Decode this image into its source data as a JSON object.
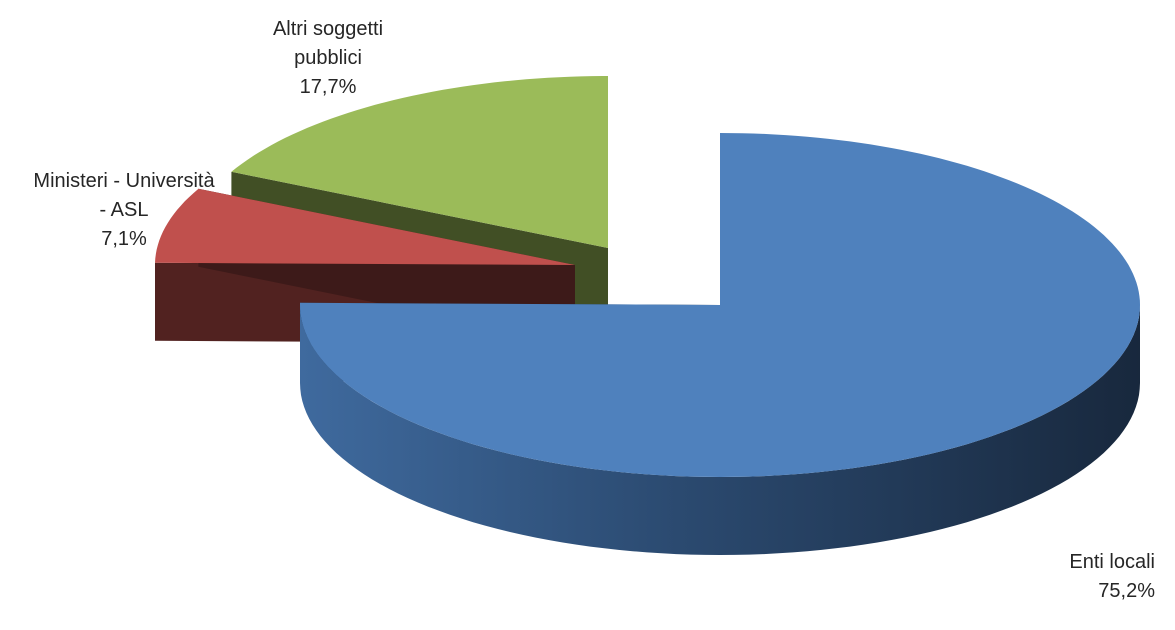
{
  "chart_data": {
    "type": "pie",
    "style": "3d-exploded",
    "title": "",
    "legend": "none",
    "slices": [
      {
        "label_lines": [
          "Enti locali"
        ],
        "value": 75.2,
        "value_label": "75,2%",
        "color": "#4f81bd"
      },
      {
        "label_lines": [
          "Ministeri - Università",
          "- ASL"
        ],
        "value": 7.1,
        "value_label": "7,1%",
        "color": "#c0504d"
      },
      {
        "label_lines": [
          "Altri soggetti",
          "pubblici"
        ],
        "value": 17.7,
        "value_label": "17,7%",
        "color": "#9bbb59"
      }
    ]
  }
}
